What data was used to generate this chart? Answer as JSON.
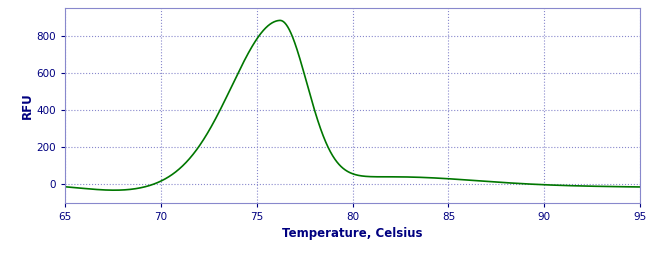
{
  "title": "",
  "xlabel": "Temperature, Celsius",
  "ylabel": "RFU",
  "xlim": [
    65,
    95
  ],
  "ylim": [
    -100,
    950
  ],
  "xticks": [
    65,
    70,
    75,
    80,
    85,
    90,
    95
  ],
  "yticks": [
    0,
    200,
    400,
    600,
    800
  ],
  "line_color": "#007700",
  "line_width": 1.2,
  "background_color": "#ffffff",
  "grid_color": "#8888cc",
  "xlabel_color": "#000080",
  "ylabel_color": "#000080",
  "tick_color": "#000080",
  "spine_color": "#8888cc"
}
